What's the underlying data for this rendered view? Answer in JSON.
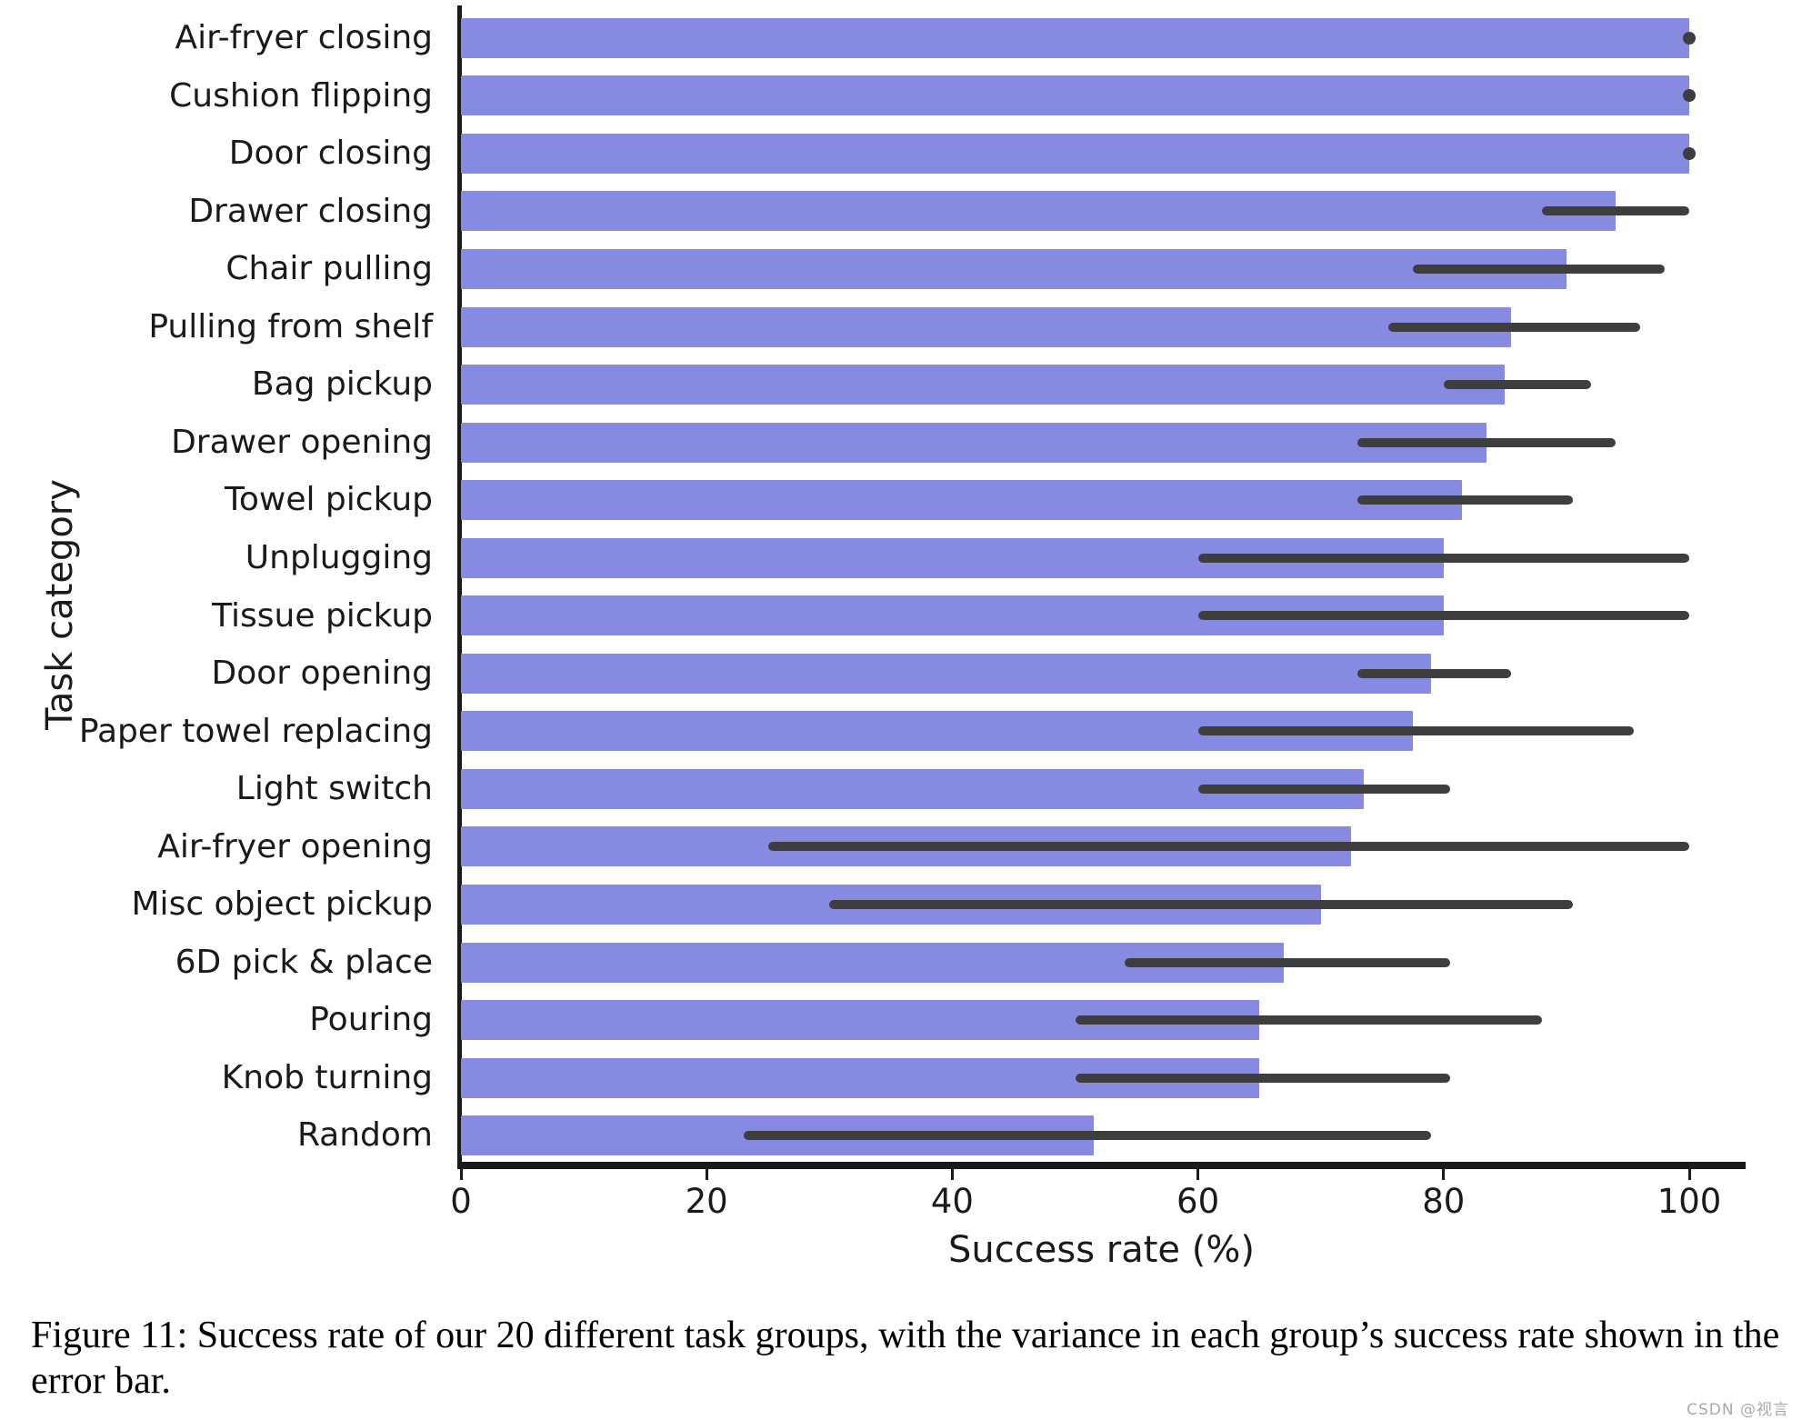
{
  "figure": {
    "caption": "Figure 11: Success rate of our 20 different task groups, with the variance in each group’s success rate shown in the error bar.",
    "watermark": "CSDN @视言"
  },
  "chart_data": {
    "type": "bar",
    "orientation": "horizontal",
    "title": "",
    "xlabel": "Success rate (%)",
    "ylabel": "Task category",
    "xlim": [
      0,
      100
    ],
    "xticks": [
      0,
      20,
      40,
      60,
      80,
      100
    ],
    "grid": false,
    "legend": "none",
    "bar_color": "#868AE0",
    "error_color": "#3E3E3E",
    "categories": [
      "Air-fryer closing",
      "Cushion flipping",
      "Door closing",
      "Drawer closing",
      "Chair pulling",
      "Pulling from shelf",
      "Bag pickup",
      "Drawer opening",
      "Towel pickup",
      "Unplugging",
      "Tissue pickup",
      "Door opening",
      "Paper towel replacing",
      "Light switch",
      "Air-fryer opening",
      "Misc object pickup",
      "6D pick & place",
      "Pouring",
      "Knob turning",
      "Random"
    ],
    "values": [
      100,
      100,
      100,
      94,
      90,
      85.5,
      85,
      83.5,
      81.5,
      80,
      80,
      79,
      77.5,
      73.5,
      72.5,
      70,
      67,
      65,
      65,
      51.5
    ],
    "error_low": [
      100,
      100,
      100,
      88,
      77.5,
      75.5,
      80,
      73,
      73,
      60,
      60,
      73,
      60,
      60,
      25,
      30,
      54,
      50,
      50,
      23
    ],
    "error_high": [
      100,
      100,
      100,
      100,
      98,
      96,
      92,
      94,
      90.5,
      100,
      100,
      85.5,
      95.5,
      80.5,
      100,
      90.5,
      80.5,
      88,
      80.5,
      79
    ]
  }
}
